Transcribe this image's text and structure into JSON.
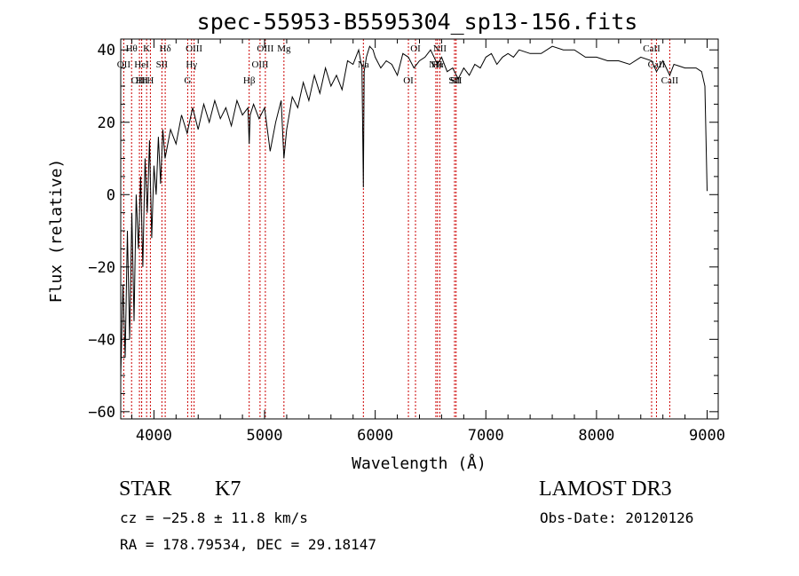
{
  "chart_data": {
    "type": "line",
    "title": "spec-55953-B5595304_sp13-156.fits",
    "xlabel": "Wavelength (Å)",
    "ylabel": "Flux (relative)",
    "xlim": [
      3700,
      9100
    ],
    "ylim": [
      -62,
      43
    ],
    "xticks": [
      4000,
      5000,
      6000,
      7000,
      8000,
      9000
    ],
    "yticks": [
      -60,
      -40,
      -20,
      0,
      20,
      40
    ],
    "series": [
      {
        "name": "spectrum",
        "x": [
          3700,
          3720,
          3740,
          3760,
          3780,
          3800,
          3820,
          3840,
          3860,
          3880,
          3900,
          3920,
          3940,
          3960,
          3980,
          4000,
          4020,
          4040,
          4060,
          4080,
          4100,
          4150,
          4200,
          4250,
          4300,
          4350,
          4400,
          4450,
          4500,
          4550,
          4600,
          4650,
          4700,
          4750,
          4800,
          4850,
          4861,
          4870,
          4900,
          4950,
          5000,
          5050,
          5100,
          5150,
          5175,
          5200,
          5250,
          5300,
          5350,
          5400,
          5450,
          5500,
          5550,
          5600,
          5650,
          5700,
          5750,
          5800,
          5850,
          5880,
          5893,
          5900,
          5920,
          5950,
          5980,
          6000,
          6050,
          6100,
          6150,
          6200,
          6250,
          6300,
          6350,
          6400,
          6450,
          6500,
          6563,
          6600,
          6650,
          6700,
          6750,
          6800,
          6850,
          6900,
          6950,
          7000,
          7050,
          7100,
          7150,
          7200,
          7250,
          7300,
          7400,
          7500,
          7600,
          7700,
          7800,
          7900,
          8000,
          8100,
          8200,
          8300,
          8400,
          8498,
          8542,
          8600,
          8662,
          8700,
          8800,
          8900,
          8950,
          8980,
          9000
        ],
        "y": [
          -50,
          -25,
          -45,
          -10,
          -40,
          -5,
          -35,
          0,
          -15,
          5,
          -20,
          10,
          -5,
          15,
          -12,
          8,
          0,
          16,
          3,
          18,
          10,
          18,
          14,
          22,
          17,
          24,
          18,
          25,
          20,
          26,
          21,
          24,
          19,
          26,
          22,
          24,
          14,
          22,
          25,
          21,
          24,
          12,
          20,
          26,
          10,
          18,
          27,
          24,
          31,
          26,
          33,
          28,
          35,
          30,
          33,
          29,
          37,
          36,
          40,
          35,
          2,
          34,
          38,
          41,
          40,
          38,
          35,
          37,
          36,
          33,
          39,
          38,
          35,
          37,
          38,
          40,
          36,
          38,
          34,
          35,
          32,
          35,
          33,
          36,
          35,
          38,
          39,
          36,
          38,
          39,
          38,
          40,
          39,
          39,
          41,
          40,
          40,
          38,
          38,
          37,
          37,
          36,
          38,
          37,
          34,
          37,
          33,
          36,
          35,
          35,
          34,
          30,
          1
        ]
      }
    ],
    "annotations": {
      "lines": [
        {
          "label": "Hθ",
          "x": 3798
        },
        {
          "label": "OII",
          "x": 3727
        },
        {
          "label": "OIII",
          "x": 3869
        },
        {
          "label": "K",
          "x": 3934
        },
        {
          "label": "HeI",
          "x": 3889
        },
        {
          "label": "Hh",
          "x": 3889
        },
        {
          "label": "Hδ",
          "x": 4102
        },
        {
          "label": "SII",
          "x": 4072
        },
        {
          "label": "H",
          "x": 3968
        },
        {
          "label": "OIII",
          "x": 4363
        },
        {
          "label": "Hγ",
          "x": 4340
        },
        {
          "label": "G",
          "x": 4305
        },
        {
          "label": "OIII",
          "x": 5007
        },
        {
          "label": "OIII",
          "x": 4959
        },
        {
          "label": "Hβ",
          "x": 4861
        },
        {
          "label": "Mg",
          "x": 5175
        },
        {
          "label": "Na",
          "x": 5893
        },
        {
          "label": "OI",
          "x": 6300
        },
        {
          "label": "OI",
          "x": 6364
        },
        {
          "label": "Hα",
          "x": 6563
        },
        {
          "label": "SII",
          "x": 6717
        },
        {
          "label": "NII",
          "x": 6584
        },
        {
          "label": "NII",
          "x": 6548
        },
        {
          "label": "SII",
          "x": 6731
        },
        {
          "label": "CaII",
          "x": 8498
        },
        {
          "label": "CaII",
          "x": 8542
        },
        {
          "label": "CaII",
          "x": 8662
        }
      ]
    }
  },
  "info": {
    "object_class": "STAR",
    "subclass": "K7",
    "survey": "LAMOST DR3",
    "cz": "cz = −25.8 ± 11.8 km/s",
    "obs_date": "Obs-Date: 20120126",
    "coords": "RA = 178.79534, DEC =  29.18147"
  },
  "colors": {
    "spectrum": "#000000",
    "line_markers": "#cc0000"
  }
}
